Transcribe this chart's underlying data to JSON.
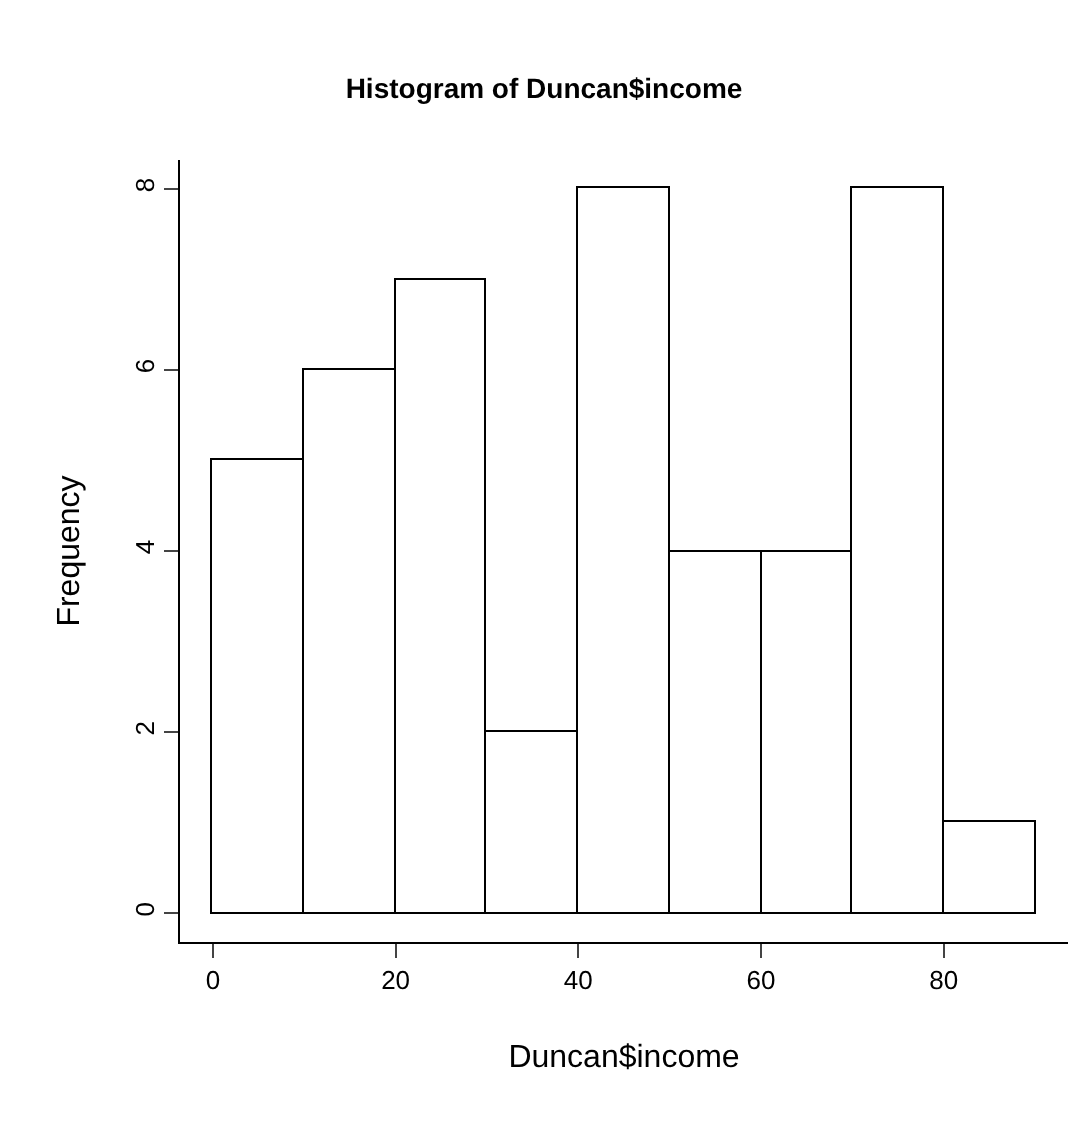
{
  "chart_data": {
    "type": "histogram",
    "title": "Histogram of Duncan$income",
    "xlabel": "Duncan$income",
    "ylabel": "Frequency",
    "bins": [
      0,
      10,
      20,
      30,
      40,
      50,
      60,
      70,
      80,
      90
    ],
    "values": [
      5,
      6,
      7,
      2,
      8,
      4,
      4,
      8,
      1
    ],
    "color": "#ffffff",
    "xlim": [
      -3.6,
      93.6
    ],
    "xticks": [
      0,
      20,
      40,
      60,
      80
    ],
    "ylim": [
      -0.32,
      8.32
    ],
    "yticks": [
      0,
      2,
      4,
      6,
      8
    ]
  }
}
